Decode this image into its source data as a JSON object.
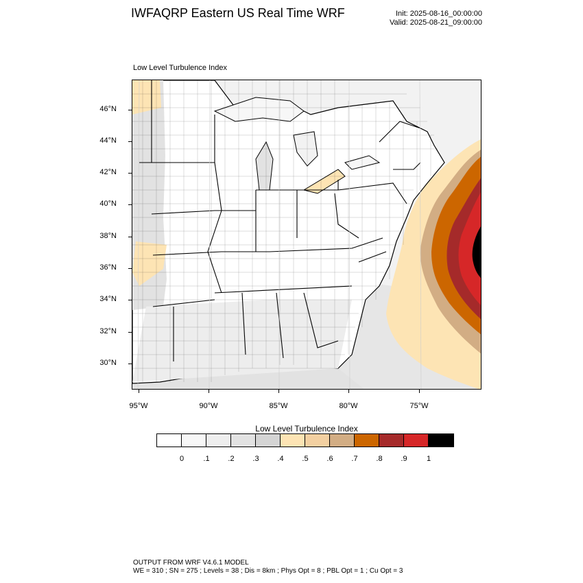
{
  "header": {
    "title": "IWFAQRP Eastern US Real Time WRF",
    "init": "Init: 2025-08-16_00:00:00",
    "valid": "Valid: 2025-08-21_09:00:00"
  },
  "map": {
    "field_label": "Low Level Turbulence Index",
    "lat_labels": [
      "46°N",
      "44°N",
      "42°N",
      "40°N",
      "38°N",
      "36°N",
      "34°N",
      "32°N",
      "30°N"
    ],
    "lon_labels": [
      "95°W",
      "90°W",
      "85°W",
      "80°W",
      "75°W"
    ]
  },
  "colorbar": {
    "title": "Low Level Turbulence Index",
    "colors": [
      "#ffffff",
      "#f7f7f7",
      "#eeeeee",
      "#e2e2e2",
      "#d4d4d4",
      "#fde4b4",
      "#f3d0a1",
      "#d2ad84",
      "#cc6600",
      "#a52a2a",
      "#d62728",
      "#000000"
    ],
    "labels": [
      "0",
      ".1",
      ".2",
      ".3",
      ".4",
      ".5",
      ".6",
      ".7",
      ".8",
      ".9",
      "1"
    ]
  },
  "footer": {
    "line1": "OUTPUT FROM WRF V4.6.1 MODEL",
    "line2": "WE = 310 ; SN = 275 ; Levels = 38 ; Dis = 8km ; Phys Opt = 8 ; PBL Opt = 1 ; Cu Opt = 3"
  }
}
